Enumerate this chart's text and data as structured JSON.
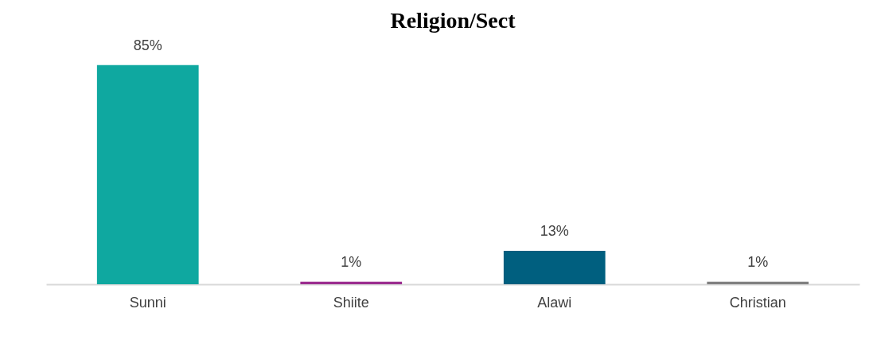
{
  "chart_data": {
    "type": "bar",
    "title": "Religion/Sect",
    "categories": [
      "Sunni",
      "Shiite",
      "Alawi",
      "Christian"
    ],
    "values": [
      85,
      1,
      13,
      1
    ],
    "colors": [
      "#0fa8a0",
      "#9b2d8f",
      "#005f7f",
      "#808080"
    ],
    "value_labels": [
      "85%",
      "1%",
      "13%",
      "1%"
    ],
    "grid": false
  }
}
